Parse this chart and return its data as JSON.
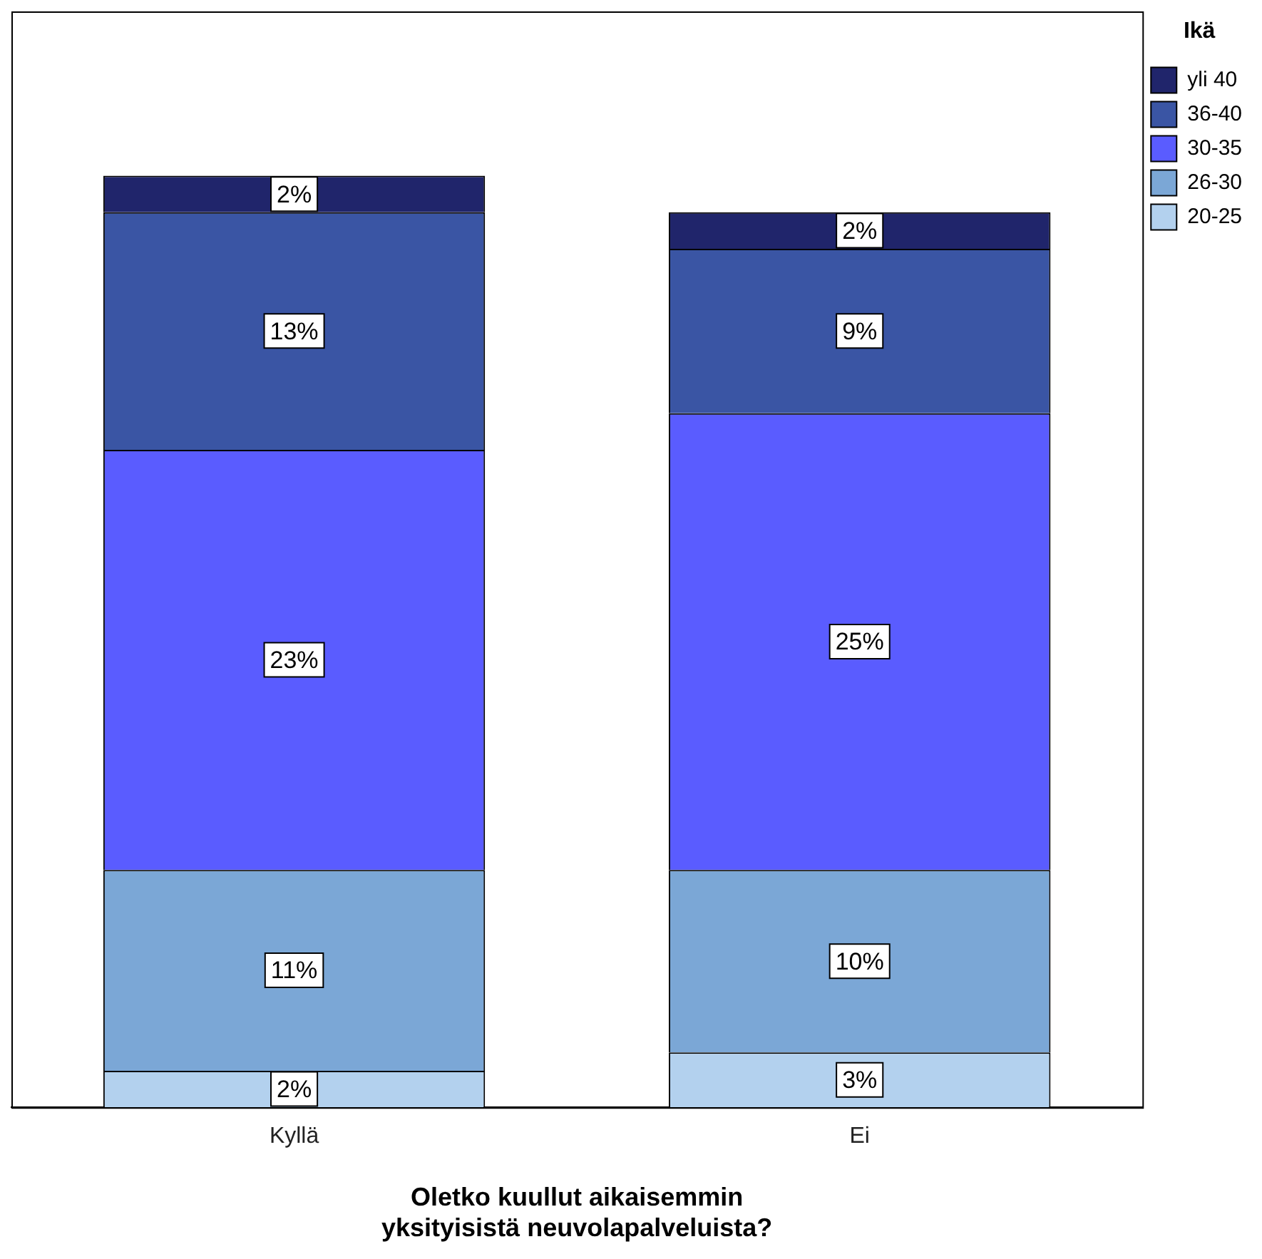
{
  "chart_data": {
    "type": "bar",
    "stacked": true,
    "xlabel": "Oletko kuullut aikaisemmin\nyksityisistä neuvolapalveluista?",
    "legend_title": "Ikä",
    "legend": "top right",
    "categories": [
      "Kyllä",
      "Ei"
    ],
    "series": [
      {
        "name": "20-25",
        "color": "#b3d1ee",
        "values": [
          2,
          3
        ],
        "value_labels": [
          "2%",
          "3%"
        ]
      },
      {
        "name": "26-30",
        "color": "#7ba7d6",
        "values": [
          11,
          10
        ],
        "value_labels": [
          "11%",
          "10%"
        ]
      },
      {
        "name": "30-35",
        "color": "#5a5cff",
        "values": [
          23,
          25
        ],
        "value_labels": [
          "23%",
          "25%"
        ]
      },
      {
        "name": "36-40",
        "color": "#3a55a4",
        "values": [
          13,
          9
        ],
        "value_labels": [
          "13%",
          "9%"
        ]
      },
      {
        "name": "yli 40",
        "color": "#20256b",
        "values": [
          2,
          2
        ],
        "value_labels": [
          "2%",
          "2%"
        ]
      }
    ],
    "tick_labels": "x",
    "grid": false
  }
}
